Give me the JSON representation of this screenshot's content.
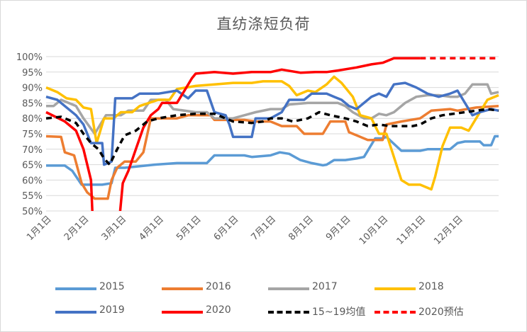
{
  "chart_data": {
    "type": "line",
    "title": "直纺涤短负荷",
    "xlabel": "",
    "ylabel": "",
    "ylim": [
      0.5,
      1.0
    ],
    "yticks": [
      "50%",
      "55%",
      "60%",
      "65%",
      "70%",
      "75%",
      "80%",
      "85%",
      "90%",
      "95%",
      "100%"
    ],
    "x_categories": [
      "1月1日",
      "2月1日",
      "3月1日",
      "4月1日",
      "5月1日",
      "6月1日",
      "7月1日",
      "8月1日",
      "9月1日",
      "10月1日",
      "11月1日",
      "12月1日"
    ],
    "grid": "horizontal",
    "legend_position": "bottom",
    "series": [
      {
        "name": "2015",
        "color": "#5b9bd5",
        "dash": false,
        "points": [
          [
            0,
            0.647
          ],
          [
            0.5,
            0.647
          ],
          [
            0.7,
            0.63
          ],
          [
            0.95,
            0.585
          ],
          [
            1.5,
            0.585
          ],
          [
            1.75,
            0.59
          ],
          [
            1.85,
            0.64
          ],
          [
            2.1,
            0.64
          ],
          [
            2.9,
            0.65
          ],
          [
            3.5,
            0.655
          ],
          [
            4.3,
            0.655
          ],
          [
            4.5,
            0.68
          ],
          [
            5.3,
            0.68
          ],
          [
            5.5,
            0.675
          ],
          [
            6.0,
            0.68
          ],
          [
            6.25,
            0.69
          ],
          [
            6.5,
            0.685
          ],
          [
            6.8,
            0.665
          ],
          [
            7.1,
            0.655
          ],
          [
            7.4,
            0.648
          ],
          [
            7.5,
            0.65
          ],
          [
            7.7,
            0.665
          ],
          [
            8.0,
            0.665
          ],
          [
            8.3,
            0.67
          ],
          [
            8.5,
            0.675
          ],
          [
            8.8,
            0.735
          ],
          [
            9.0,
            0.735
          ],
          [
            9.1,
            0.74
          ],
          [
            9.5,
            0.695
          ],
          [
            10.0,
            0.695
          ],
          [
            10.2,
            0.7
          ],
          [
            10.8,
            0.7
          ],
          [
            11.0,
            0.72
          ],
          [
            11.2,
            0.725
          ],
          [
            11.6,
            0.725
          ],
          [
            11.7,
            0.713
          ],
          [
            11.9,
            0.713
          ],
          [
            12.0,
            0.742
          ],
          [
            12.1,
            0.742
          ]
        ]
      },
      {
        "name": "2016",
        "color": "#ed7d31",
        "dash": false,
        "points": [
          [
            0,
            0.742
          ],
          [
            0.4,
            0.74
          ],
          [
            0.5,
            0.69
          ],
          [
            0.75,
            0.68
          ],
          [
            0.95,
            0.59
          ],
          [
            1.1,
            0.56
          ],
          [
            1.3,
            0.54
          ],
          [
            1.65,
            0.54
          ],
          [
            1.75,
            0.6
          ],
          [
            1.9,
            0.64
          ],
          [
            2.1,
            0.66
          ],
          [
            2.4,
            0.66
          ],
          [
            2.6,
            0.69
          ],
          [
            2.8,
            0.8
          ],
          [
            3.5,
            0.8
          ],
          [
            3.8,
            0.81
          ],
          [
            4.4,
            0.81
          ],
          [
            4.5,
            0.795
          ],
          [
            5.3,
            0.795
          ],
          [
            5.6,
            0.79
          ],
          [
            6.0,
            0.79
          ],
          [
            6.3,
            0.775
          ],
          [
            6.7,
            0.775
          ],
          [
            6.9,
            0.75
          ],
          [
            7.4,
            0.75
          ],
          [
            7.6,
            0.79
          ],
          [
            8.0,
            0.79
          ],
          [
            8.1,
            0.755
          ],
          [
            8.6,
            0.73
          ],
          [
            9.0,
            0.73
          ],
          [
            9.1,
            0.78
          ],
          [
            9.5,
            0.79
          ],
          [
            10.0,
            0.8
          ],
          [
            10.3,
            0.825
          ],
          [
            10.8,
            0.83
          ],
          [
            11.0,
            0.825
          ],
          [
            11.5,
            0.835
          ],
          [
            12.1,
            0.84
          ]
        ]
      },
      {
        "name": "2017",
        "color": "#a5a5a5",
        "dash": false,
        "points": [
          [
            0,
            0.84
          ],
          [
            0.2,
            0.84
          ],
          [
            0.4,
            0.86
          ],
          [
            0.8,
            0.84
          ],
          [
            1.0,
            0.8
          ],
          [
            1.3,
            0.75
          ],
          [
            1.6,
            0.81
          ],
          [
            2.0,
            0.81
          ],
          [
            2.2,
            0.825
          ],
          [
            2.6,
            0.825
          ],
          [
            2.8,
            0.86
          ],
          [
            3.2,
            0.86
          ],
          [
            3.4,
            0.83
          ],
          [
            4.0,
            0.82
          ],
          [
            4.3,
            0.82
          ],
          [
            4.5,
            0.8
          ],
          [
            5.0,
            0.8
          ],
          [
            5.3,
            0.81
          ],
          [
            5.6,
            0.82
          ],
          [
            6.0,
            0.83
          ],
          [
            6.3,
            0.83
          ],
          [
            6.5,
            0.845
          ],
          [
            7.0,
            0.85
          ],
          [
            7.5,
            0.85
          ],
          [
            7.8,
            0.85
          ],
          [
            8.0,
            0.84
          ],
          [
            8.2,
            0.82
          ],
          [
            8.5,
            0.8
          ],
          [
            8.7,
            0.8
          ],
          [
            8.9,
            0.815
          ],
          [
            9.1,
            0.81
          ],
          [
            9.3,
            0.82
          ],
          [
            9.6,
            0.85
          ],
          [
            9.9,
            0.87
          ],
          [
            10.2,
            0.875
          ],
          [
            10.5,
            0.875
          ],
          [
            10.8,
            0.87
          ],
          [
            11.0,
            0.87
          ],
          [
            11.2,
            0.88
          ],
          [
            11.4,
            0.91
          ],
          [
            11.8,
            0.91
          ],
          [
            11.9,
            0.88
          ],
          [
            12.1,
            0.885
          ]
        ]
      },
      {
        "name": "2018",
        "color": "#ffc000",
        "dash": false,
        "points": [
          [
            0,
            0.9
          ],
          [
            0.3,
            0.885
          ],
          [
            0.55,
            0.865
          ],
          [
            0.8,
            0.86
          ],
          [
            1.0,
            0.835
          ],
          [
            1.2,
            0.83
          ],
          [
            1.35,
            0.72
          ],
          [
            1.55,
            0.8
          ],
          [
            1.8,
            0.8
          ],
          [
            2.0,
            0.82
          ],
          [
            2.3,
            0.82
          ],
          [
            2.5,
            0.84
          ],
          [
            3.0,
            0.86
          ],
          [
            3.3,
            0.86
          ],
          [
            3.5,
            0.895
          ],
          [
            4.0,
            0.905
          ],
          [
            4.5,
            0.91
          ],
          [
            5.0,
            0.915
          ],
          [
            5.5,
            0.915
          ],
          [
            5.8,
            0.92
          ],
          [
            6.3,
            0.92
          ],
          [
            6.5,
            0.905
          ],
          [
            6.7,
            0.875
          ],
          [
            7.0,
            0.89
          ],
          [
            7.2,
            0.885
          ],
          [
            7.5,
            0.91
          ],
          [
            7.7,
            0.935
          ],
          [
            7.9,
            0.915
          ],
          [
            8.2,
            0.87
          ],
          [
            8.4,
            0.81
          ],
          [
            8.7,
            0.8
          ],
          [
            8.9,
            0.75
          ],
          [
            9.1,
            0.75
          ],
          [
            9.5,
            0.6
          ],
          [
            9.7,
            0.585
          ],
          [
            10.0,
            0.585
          ],
          [
            10.3,
            0.57
          ],
          [
            10.4,
            0.61
          ],
          [
            10.6,
            0.71
          ],
          [
            10.8,
            0.77
          ],
          [
            11.1,
            0.77
          ],
          [
            11.3,
            0.76
          ],
          [
            11.6,
            0.82
          ],
          [
            11.8,
            0.86
          ],
          [
            12.1,
            0.875
          ]
        ]
      },
      {
        "name": "2019",
        "color": "#4472c4",
        "dash": false,
        "points": [
          [
            0,
            0.87
          ],
          [
            0.3,
            0.86
          ],
          [
            0.5,
            0.84
          ],
          [
            0.8,
            0.81
          ],
          [
            1.0,
            0.78
          ],
          [
            1.2,
            0.72
          ],
          [
            1.5,
            0.72
          ],
          [
            1.55,
            0.65
          ],
          [
            1.75,
            0.66
          ],
          [
            1.85,
            0.865
          ],
          [
            2.3,
            0.865
          ],
          [
            2.5,
            0.88
          ],
          [
            3.0,
            0.88
          ],
          [
            3.5,
            0.89
          ],
          [
            3.8,
            0.865
          ],
          [
            4.0,
            0.89
          ],
          [
            4.3,
            0.89
          ],
          [
            4.5,
            0.82
          ],
          [
            4.8,
            0.81
          ],
          [
            4.9,
            0.78
          ],
          [
            5.0,
            0.74
          ],
          [
            5.5,
            0.74
          ],
          [
            5.6,
            0.8
          ],
          [
            6.0,
            0.8
          ],
          [
            6.3,
            0.82
          ],
          [
            6.5,
            0.86
          ],
          [
            6.9,
            0.86
          ],
          [
            7.1,
            0.88
          ],
          [
            7.5,
            0.88
          ],
          [
            7.7,
            0.87
          ],
          [
            7.9,
            0.86
          ],
          [
            8.1,
            0.84
          ],
          [
            8.3,
            0.83
          ],
          [
            8.5,
            0.85
          ],
          [
            8.7,
            0.87
          ],
          [
            8.9,
            0.88
          ],
          [
            9.1,
            0.87
          ],
          [
            9.3,
            0.91
          ],
          [
            9.6,
            0.915
          ],
          [
            9.9,
            0.9
          ],
          [
            10.2,
            0.88
          ],
          [
            10.5,
            0.87
          ],
          [
            10.8,
            0.88
          ],
          [
            11.0,
            0.89
          ],
          [
            11.2,
            0.85
          ],
          [
            11.4,
            0.81
          ],
          [
            11.6,
            0.82
          ],
          [
            11.9,
            0.83
          ],
          [
            12.1,
            0.825
          ]
        ]
      },
      {
        "name": "2020",
        "color": "#ff0000",
        "dash": false,
        "points": [
          [
            0,
            0.82
          ],
          [
            0.5,
            0.79
          ],
          [
            0.8,
            0.76
          ],
          [
            1.0,
            0.7
          ],
          [
            1.2,
            0.6
          ],
          [
            1.25,
            0.46
          ],
          [
            1.95,
            0.46
          ],
          [
            2.05,
            0.59
          ],
          [
            2.2,
            0.63
          ],
          [
            2.4,
            0.7
          ],
          [
            2.6,
            0.77
          ],
          [
            2.8,
            0.81
          ],
          [
            3.0,
            0.83
          ],
          [
            3.1,
            0.85
          ],
          [
            3.5,
            0.85
          ],
          [
            3.7,
            0.89
          ],
          [
            3.9,
            0.93
          ],
          [
            4.0,
            0.945
          ],
          [
            4.5,
            0.95
          ],
          [
            5.0,
            0.945
          ],
          [
            5.5,
            0.95
          ],
          [
            6.0,
            0.95
          ],
          [
            6.3,
            0.958
          ],
          [
            6.8,
            0.948
          ],
          [
            7.2,
            0.95
          ],
          [
            7.5,
            0.95
          ],
          [
            7.8,
            0.955
          ],
          [
            8.3,
            0.965
          ],
          [
            8.7,
            0.975
          ],
          [
            9.0,
            0.98
          ],
          [
            9.3,
            0.995
          ],
          [
            10.0,
            0.995
          ]
        ]
      },
      {
        "name": "15~19均值",
        "color": "#000000",
        "dash": true,
        "points": [
          [
            0,
            0.8
          ],
          [
            0.4,
            0.805
          ],
          [
            0.8,
            0.785
          ],
          [
            1.0,
            0.75
          ],
          [
            1.2,
            0.72
          ],
          [
            1.4,
            0.7
          ],
          [
            1.55,
            0.67
          ],
          [
            1.7,
            0.65
          ],
          [
            1.9,
            0.7
          ],
          [
            2.1,
            0.745
          ],
          [
            2.4,
            0.76
          ],
          [
            2.7,
            0.79
          ],
          [
            3.0,
            0.8
          ],
          [
            3.5,
            0.81
          ],
          [
            4.0,
            0.815
          ],
          [
            4.5,
            0.815
          ],
          [
            4.8,
            0.8
          ],
          [
            5.0,
            0.79
          ],
          [
            5.5,
            0.785
          ],
          [
            5.8,
            0.79
          ],
          [
            6.0,
            0.8
          ],
          [
            6.3,
            0.8
          ],
          [
            6.6,
            0.79
          ],
          [
            7.0,
            0.8
          ],
          [
            7.3,
            0.82
          ],
          [
            7.6,
            0.81
          ],
          [
            8.0,
            0.8
          ],
          [
            8.3,
            0.79
          ],
          [
            8.6,
            0.775
          ],
          [
            8.9,
            0.78
          ],
          [
            9.2,
            0.775
          ],
          [
            9.5,
            0.775
          ],
          [
            9.8,
            0.775
          ],
          [
            10.0,
            0.78
          ],
          [
            10.3,
            0.8
          ],
          [
            10.6,
            0.81
          ],
          [
            10.9,
            0.815
          ],
          [
            11.2,
            0.82
          ],
          [
            11.5,
            0.825
          ],
          [
            11.8,
            0.83
          ],
          [
            12.1,
            0.825
          ]
        ]
      },
      {
        "name": "2020预估",
        "color": "#ff0000",
        "dash": true,
        "points": [
          [
            10.0,
            0.995
          ],
          [
            10.5,
            0.995
          ],
          [
            11.0,
            0.995
          ],
          [
            11.5,
            0.995
          ],
          [
            12.1,
            0.995
          ]
        ]
      }
    ]
  }
}
